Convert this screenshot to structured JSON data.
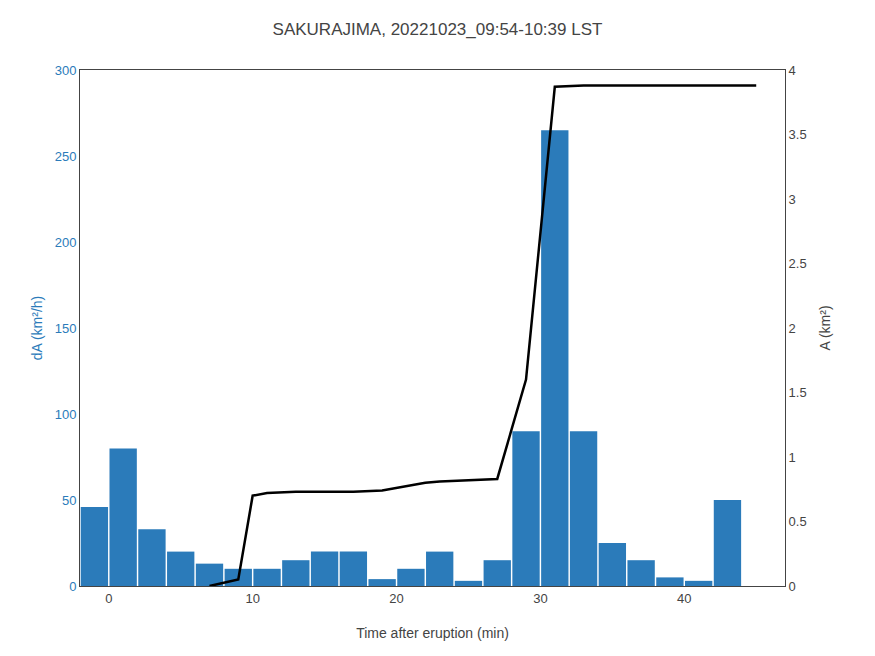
{
  "chart_data": {
    "type": "bar",
    "title": "SAKURAJIMA, 20221023_09:54-10:39 LST",
    "x_label": "Time after eruption (min)",
    "y_label": "dA (km²/h)",
    "y2_label": "A (km²)",
    "series": [
      {
        "type": "bar",
        "color": "#2b7bba",
        "x": [
          -1,
          1,
          3,
          5,
          7,
          9,
          11,
          13,
          15,
          17,
          19,
          21,
          23,
          25,
          27,
          29,
          31,
          33,
          35,
          37,
          39,
          41,
          43,
          45
        ],
        "values": [
          46,
          80,
          33,
          20,
          13,
          10,
          10,
          15,
          20,
          20,
          4,
          10,
          20,
          3,
          15,
          90,
          265,
          90,
          25,
          15,
          5,
          3,
          50,
          0
        ]
      },
      {
        "type": "line",
        "axis": "y2",
        "color": "#000000",
        "x": [
          7,
          9,
          10,
          11,
          13,
          15,
          17,
          19,
          21,
          22,
          23,
          25,
          26,
          27,
          29,
          31,
          33,
          35,
          37,
          39,
          41,
          43,
          45
        ],
        "values": [
          0.0,
          0.05,
          0.7,
          0.72,
          0.73,
          0.73,
          0.73,
          0.74,
          0.78,
          0.8,
          0.81,
          0.82,
          0.82,
          0.83,
          1.6,
          3.87,
          3.88,
          3.88,
          3.88,
          3.88,
          3.88,
          3.88,
          3.88
        ]
      }
    ],
    "xlim": [
      -2,
      47
    ],
    "xticks": [
      0,
      10,
      20,
      30,
      40
    ],
    "ylim": [
      0,
      300
    ],
    "yticks": [
      0,
      50,
      100,
      150,
      200,
      250,
      300
    ],
    "y2lim": [
      0,
      4
    ],
    "y2ticks": [
      0,
      0.5,
      1,
      1.5,
      2,
      2.5,
      3,
      3.5,
      4
    ],
    "grid": false
  }
}
